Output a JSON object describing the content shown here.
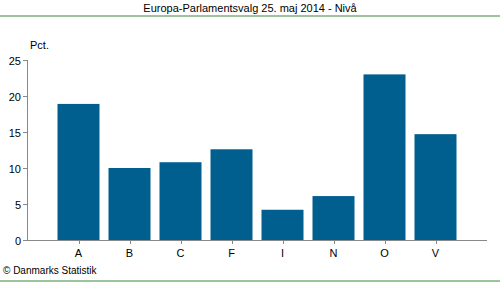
{
  "chart_data": {
    "type": "bar",
    "title": "Europa-Parlamentsvalg 25. maj 2014 - Nivå",
    "ylabel": "Pct.",
    "source": "© Danmarks Statistik",
    "categories": [
      "A",
      "B",
      "C",
      "F",
      "I",
      "N",
      "O",
      "V"
    ],
    "values": [
      18.9,
      10.0,
      10.8,
      12.6,
      4.2,
      6.1,
      23.0,
      14.7
    ],
    "color": "#005f8f",
    "ylim": [
      0,
      25
    ],
    "yticks": [
      0,
      5,
      10,
      15,
      20,
      25
    ],
    "grid": false
  }
}
